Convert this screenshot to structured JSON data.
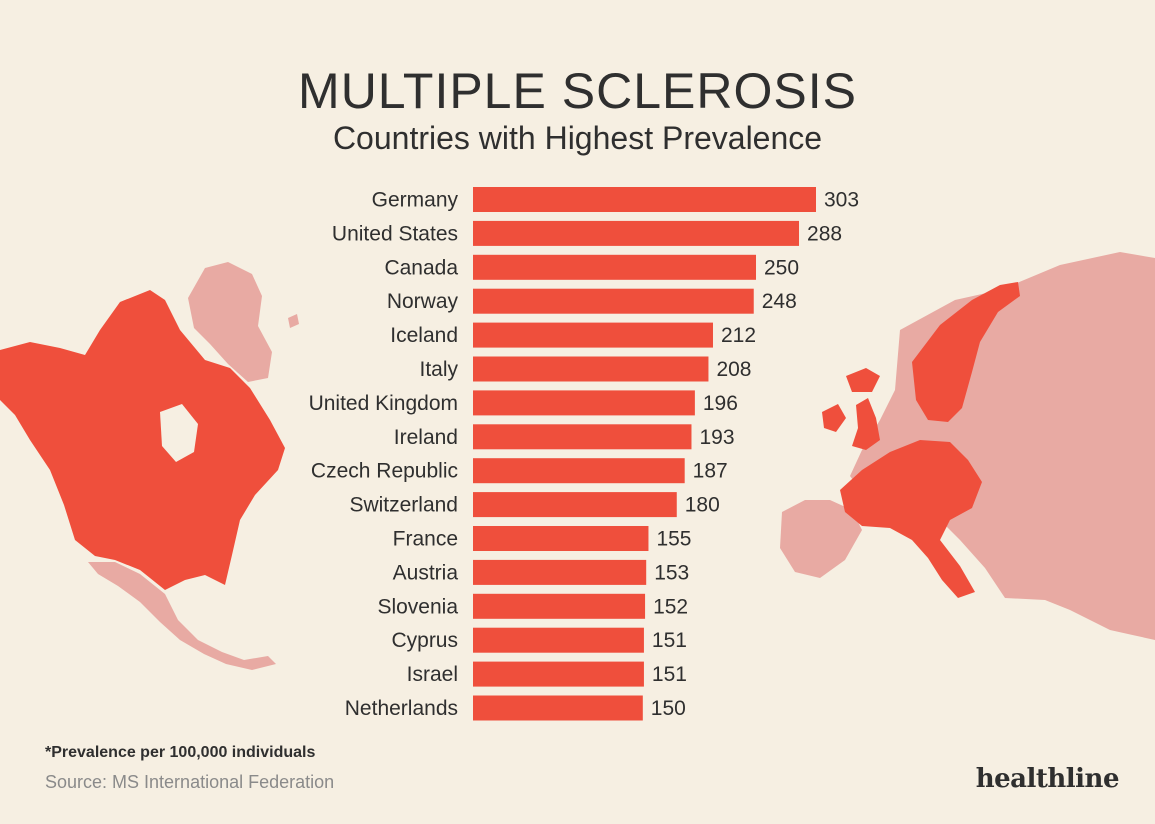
{
  "header": {
    "title": "MULTIPLE SCLEROSIS",
    "subtitle": "Countries with Highest Prevalence"
  },
  "footer": {
    "footnote": "*Prevalence per 100,000 individuals",
    "source": "Source: MS International Federation",
    "brand": "healthline"
  },
  "colors": {
    "background": "#f6efe2",
    "bar": "#ef4f3c",
    "map_highlight": "#ef4f3c",
    "map_muted": "#e8aaa3",
    "text": "#2f2f2f"
  },
  "chart_data": {
    "type": "bar",
    "orientation": "horizontal",
    "title": "MULTIPLE SCLEROSIS",
    "subtitle": "Countries with Highest Prevalence",
    "categories": [
      "Germany",
      "United States",
      "Canada",
      "Norway",
      "Iceland",
      "Italy",
      "United Kingdom",
      "Ireland",
      "Czech Republic",
      "Switzerland",
      "France",
      "Austria",
      "Slovenia",
      "Cyprus",
      "Israel",
      "Netherlands"
    ],
    "values": [
      303,
      288,
      250,
      248,
      212,
      208,
      196,
      193,
      187,
      180,
      155,
      153,
      152,
      151,
      151,
      150
    ],
    "data_labels": [
      "303",
      "288",
      "250",
      "248",
      "212",
      "208",
      "196",
      "193",
      "187",
      "180",
      "155",
      "153",
      "152",
      "151",
      "151",
      "150"
    ],
    "xlim": [
      0,
      303
    ],
    "grid": false,
    "legend": "none"
  }
}
